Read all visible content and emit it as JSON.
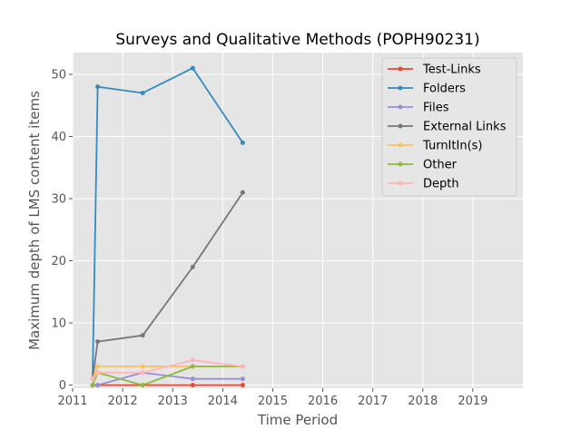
{
  "chart_data": {
    "type": "line",
    "title": "Surveys and Qualitative Methods (POPH90231)",
    "xlabel": "Time Period",
    "ylabel": "Maximum depth of LMS content items",
    "xlim": [
      2011.0,
      2020.0
    ],
    "ylim": [
      -0.5,
      53.5
    ],
    "x_ticks": [
      2011,
      2012,
      2013,
      2014,
      2015,
      2016,
      2017,
      2018,
      2019
    ],
    "y_ticks": [
      0,
      10,
      20,
      30,
      40,
      50
    ],
    "grid": true,
    "legend_position": "top-right",
    "background": "#e5e5e5",
    "x": [
      2011.4,
      2011.5,
      2012.4,
      2013.4,
      2014.4
    ],
    "series": [
      {
        "name": "Test-Links",
        "color": "#e24a33",
        "values": [
          0,
          0,
          0,
          0,
          0
        ]
      },
      {
        "name": "Folders",
        "color": "#348abd",
        "values": [
          1,
          48,
          47,
          51,
          39
        ]
      },
      {
        "name": "Files",
        "color": "#988ed5",
        "values": [
          0,
          0,
          2,
          1,
          1
        ]
      },
      {
        "name": "External Links",
        "color": "#777777",
        "values": [
          1,
          7,
          8,
          19,
          31
        ]
      },
      {
        "name": "TurnItIn(s)",
        "color": "#fbc15e",
        "values": [
          1,
          3,
          3,
          3,
          3
        ]
      },
      {
        "name": "Other",
        "color": "#8eba42",
        "values": [
          0,
          2,
          0,
          3,
          3
        ]
      },
      {
        "name": "Depth",
        "color": "#ffb5b8",
        "values": [
          1,
          2,
          2,
          4,
          3
        ]
      }
    ]
  }
}
